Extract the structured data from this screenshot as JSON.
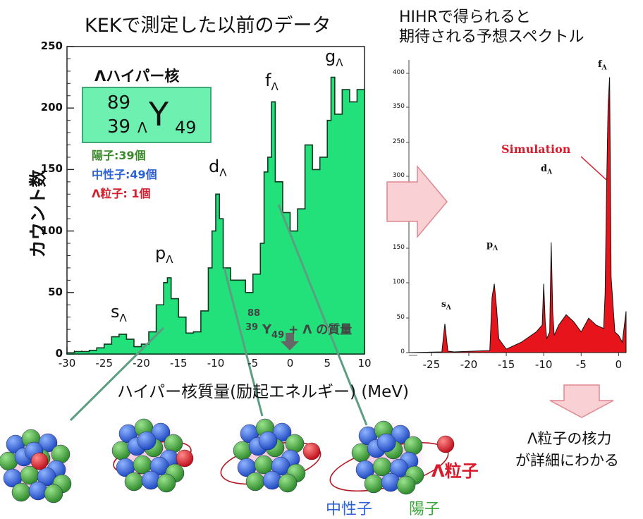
{
  "left_chart": {
    "title": "KEKで測定した以前のデータ",
    "ylabel": "カウント数",
    "xlabel": "ハイパー核質量(励起エネルギー) (MeV)",
    "yticks": [
      "0",
      "50",
      "100",
      "150",
      "200",
      "250"
    ],
    "xticks": [
      "-30",
      "-25",
      "-20",
      "-15",
      "-10",
      "-5",
      "0",
      "5",
      "10"
    ],
    "peaks": {
      "s": "s",
      "p": "p",
      "d": "d",
      "f": "f",
      "g": "g",
      "sub": "Λ"
    },
    "core_mass": {
      "sup": "88",
      "sub": "39",
      "sym": "Y",
      "sub2": "49",
      "rest": "+ Λ の質量"
    },
    "hypernucleus_title": "Λハイパー核",
    "nucleus_box": {
      "A": "89",
      "Z": "39",
      "lambda": "Λ",
      "symbol": "Y",
      "N": "49"
    },
    "composition": {
      "protons": "陽子:39個",
      "neutrons": "中性子:49個",
      "lambda": "Λ粒子: 1個"
    }
  },
  "right_chart": {
    "title_line1": "HIHRで得られると",
    "title_line2": "期待される予想スペクトル",
    "yticks_upper": [
      "300",
      "350",
      "400"
    ],
    "yticks_lower": [
      "0",
      "50",
      "100",
      "150"
    ],
    "yticks_split": [
      "250"
    ],
    "xticks": [
      "-25",
      "-20",
      "-15",
      "-10",
      "-5",
      "0"
    ],
    "peaks": {
      "s": "s",
      "p": "p",
      "d": "d",
      "f": "f",
      "sub": "Λ"
    },
    "annotation": "Simulation"
  },
  "conclusion": {
    "line1": "Λ粒子の核力",
    "line2": "が詳細にわかる"
  },
  "legend": {
    "neutron": "中性子",
    "proton": "陽子",
    "lambda": "Λ粒子"
  },
  "colors": {
    "histogram_fill": "#22e07a",
    "simulation_fill": "#e8141c",
    "proton": "#3aa63a",
    "neutron": "#2e63d6",
    "lambda": "#d81c2c",
    "arrow": "#f7c5c9",
    "box_fill": "#6ef0b0",
    "line": "#5d9e82"
  },
  "chart_data": [
    {
      "type": "area",
      "title": "KEKで測定した以前のデータ",
      "xlabel": "ハイパー核質量(励起エネルギー) (MeV)",
      "ylabel": "カウント数",
      "xlim": [
        -30,
        10
      ],
      "ylim": [
        0,
        250
      ],
      "x": [
        -30,
        -29,
        -28,
        -27,
        -26,
        -25,
        -24,
        -23,
        -22,
        -21,
        -20,
        -19,
        -18,
        -17,
        -16.5,
        -16,
        -15,
        -14,
        -13,
        -12,
        -11,
        -10.5,
        -10,
        -9.5,
        -9,
        -8,
        -7,
        -6,
        -5,
        -4,
        -3.5,
        -3,
        -2.5,
        -2,
        -1,
        0,
        1,
        2,
        3,
        4,
        5,
        5.5,
        6,
        7,
        8,
        9,
        10
      ],
      "series": [
        {
          "values": [
            1,
            2,
            2,
            3,
            5,
            8,
            14,
            16,
            12,
            6,
            8,
            18,
            40,
            58,
            62,
            45,
            30,
            17,
            18,
            35,
            70,
            100,
            130,
            110,
            70,
            60,
            60,
            50,
            65,
            90,
            148,
            160,
            205,
            140,
            115,
            100,
            118,
            170,
            150,
            160,
            190,
            225,
            195,
            215,
            205,
            215,
            205
          ]
        }
      ],
      "peak_labels": [
        "s",
        "p",
        "d",
        "f",
        "g"
      ]
    },
    {
      "type": "area",
      "title": "HIHRで得られると 期待される予想スペクトル",
      "xlim": [
        -28,
        1
      ],
      "ylim": [
        0,
        420
      ],
      "x": [
        -28,
        -23.6,
        -23.2,
        -22.8,
        -22,
        -17.2,
        -16.9,
        -16.6,
        -16.3,
        -16,
        -15,
        -13,
        -11,
        -10.2,
        -10,
        -9.8,
        -9.6,
        -9.2,
        -9,
        -8.8,
        -8.6,
        -8,
        -7,
        -6,
        -5,
        -4,
        -3,
        -2,
        -1.8,
        -1.6,
        -1.4,
        -1.2,
        -1,
        -0.5,
        0,
        0.5,
        1
      ],
      "series": [
        {
          "name": "Simulation",
          "values": [
            0,
            1,
            42,
            2,
            1,
            3,
            80,
            100,
            65,
            20,
            5,
            15,
            30,
            40,
            100,
            45,
            20,
            30,
            160,
            60,
            25,
            40,
            55,
            45,
            30,
            50,
            40,
            35,
            85,
            240,
            360,
            400,
            110,
            30,
            25,
            15,
            60
          ]
        }
      ],
      "peak_labels": [
        "s",
        "p",
        "d",
        "f"
      ]
    }
  ]
}
